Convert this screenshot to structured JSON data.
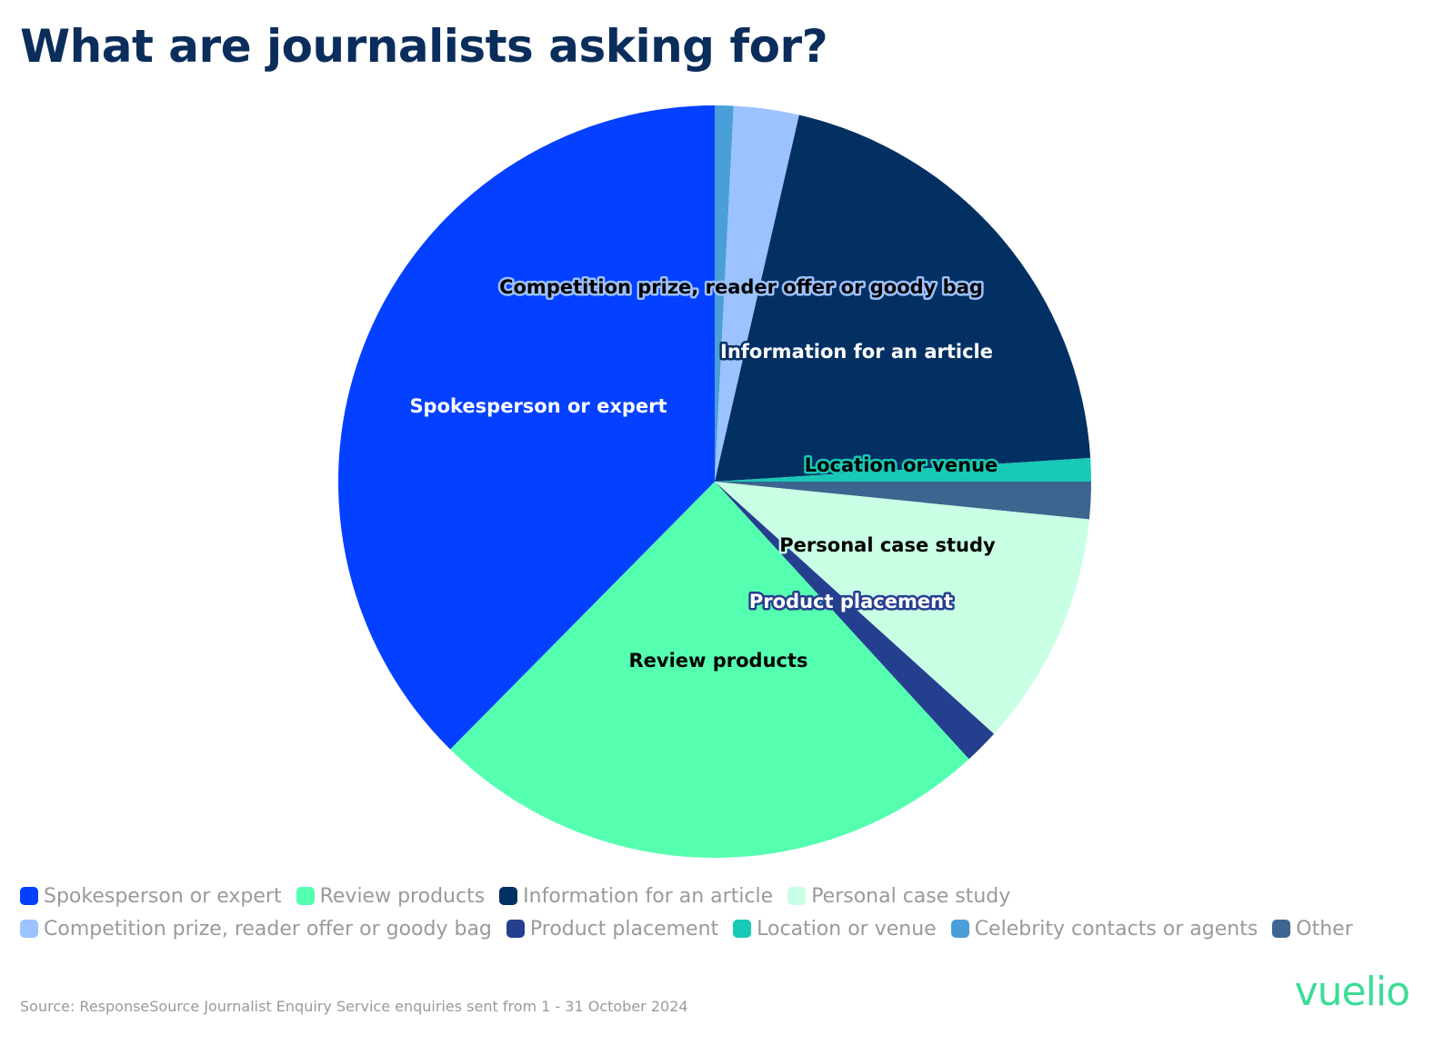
{
  "title": "What are journalists asking for?",
  "source": "Source: ResponseSource Journalist Enquiry Service enquiries sent from 1 - 31 October 2024",
  "logo": "vuelio",
  "chart_data": {
    "type": "pie",
    "title": "What are journalists asking for?",
    "start_angle": "12 o'clock",
    "direction": "clockwise",
    "legend_position": "bottom",
    "slices": [
      {
        "name": "Celebrity contacts or agents",
        "value": 0.8,
        "color": "#4a9fd8",
        "label_color": "#000000",
        "halo_color": "#4a9fd8",
        "show_label": false
      },
      {
        "name": "Competition prize, reader offer or goody bag",
        "value": 2.8,
        "color": "#9cc2ff",
        "label_color": "#000000",
        "halo_color": "#9cc2ff",
        "show_label": true
      },
      {
        "name": "Information for an article",
        "value": 20.4,
        "color": "#033063",
        "label_color": "#ffffff",
        "halo_color": "#033063",
        "show_label": true
      },
      {
        "name": "Location or venue",
        "value": 1.0,
        "color": "#17c9b7",
        "label_color": "#000000",
        "halo_color": "#17c9b7",
        "show_label": true
      },
      {
        "name": "Other",
        "value": 1.6,
        "color": "#3d6590",
        "label_color": "#ffffff",
        "halo_color": "#3d6590",
        "show_label": false
      },
      {
        "name": "Personal case study",
        "value": 10.1,
        "color": "#c8ffe5",
        "label_color": "#000000",
        "halo_color": "#c8ffe5",
        "show_label": true
      },
      {
        "name": "Product placement",
        "value": 1.5,
        "color": "#253f8f",
        "label_color": "#ffffff",
        "halo_color": "#253f8f",
        "show_label": true
      },
      {
        "name": "Review products",
        "value": 24.2,
        "color": "#55ffb0",
        "label_color": "#000000",
        "halo_color": "#55ffb0",
        "show_label": true
      },
      {
        "name": "Spokesperson or expert",
        "value": 37.6,
        "color": "#0440ff",
        "label_color": "#ffffff",
        "halo_color": "#0440ff",
        "show_label": true
      }
    ]
  },
  "legend": [
    {
      "label": "Spokesperson or expert",
      "color": "#0440ff"
    },
    {
      "label": "Review products",
      "color": "#55ffb0"
    },
    {
      "label": "Information for an article",
      "color": "#033063"
    },
    {
      "label": "Personal case study",
      "color": "#c8ffe5"
    },
    {
      "label": "Competition prize, reader offer or goody bag",
      "color": "#9cc2ff"
    },
    {
      "label": "Product placement",
      "color": "#253f8f"
    },
    {
      "label": "Location or venue",
      "color": "#17c9b7"
    },
    {
      "label": "Celebrity contacts or agents",
      "color": "#4a9fd8"
    },
    {
      "label": "Other",
      "color": "#3d6590"
    }
  ]
}
